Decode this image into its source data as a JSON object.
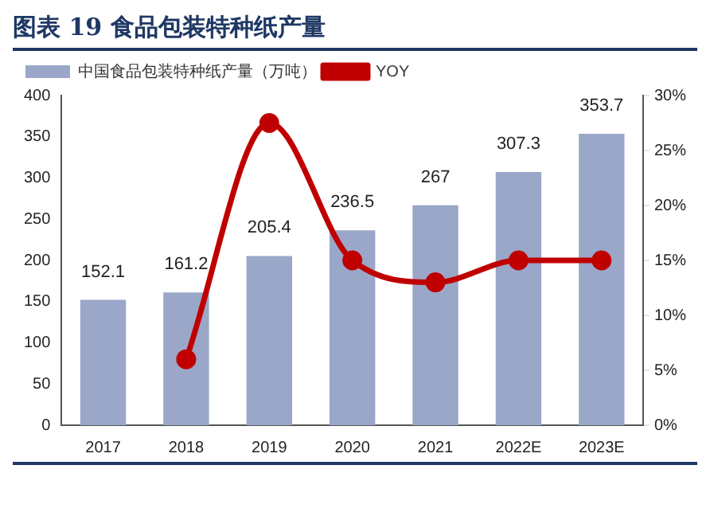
{
  "chart_data": {
    "type": "bar",
    "title": "图表 19 食品包装特种纸产量",
    "categories": [
      "2017",
      "2018",
      "2019",
      "2020",
      "2021",
      "2022E",
      "2023E"
    ],
    "series": [
      {
        "name": "中国食品包装特种纸产量（万吨）",
        "color": "#9aa7c9",
        "values": [
          152.1,
          161.2,
          205.4,
          236.5,
          267,
          307.3,
          353.7
        ],
        "value_labels": [
          "152.1",
          "161.2",
          "205.4",
          "236.5",
          "267",
          "307.3",
          "353.7"
        ]
      },
      {
        "name": "YOY",
        "type": "line",
        "axis": "y2",
        "color": "#c00000",
        "marker": "circle",
        "values": [
          null,
          6,
          27.5,
          15,
          13,
          15,
          15
        ]
      }
    ],
    "ylim": [
      0,
      400
    ],
    "yticks": [
      0,
      50,
      100,
      150,
      200,
      250,
      300,
      350,
      400
    ],
    "y2lim": [
      0,
      30
    ],
    "y2ticks": [
      {
        "value": 0,
        "label": "0%"
      },
      {
        "value": 5,
        "label": "5%"
      },
      {
        "value": 10,
        "label": "10%"
      },
      {
        "value": 15,
        "label": "15%"
      },
      {
        "value": 20,
        "label": "20%"
      },
      {
        "value": 25,
        "label": "25%"
      },
      {
        "value": 30,
        "label": "30%"
      }
    ],
    "legend": "top left",
    "grid": false
  }
}
